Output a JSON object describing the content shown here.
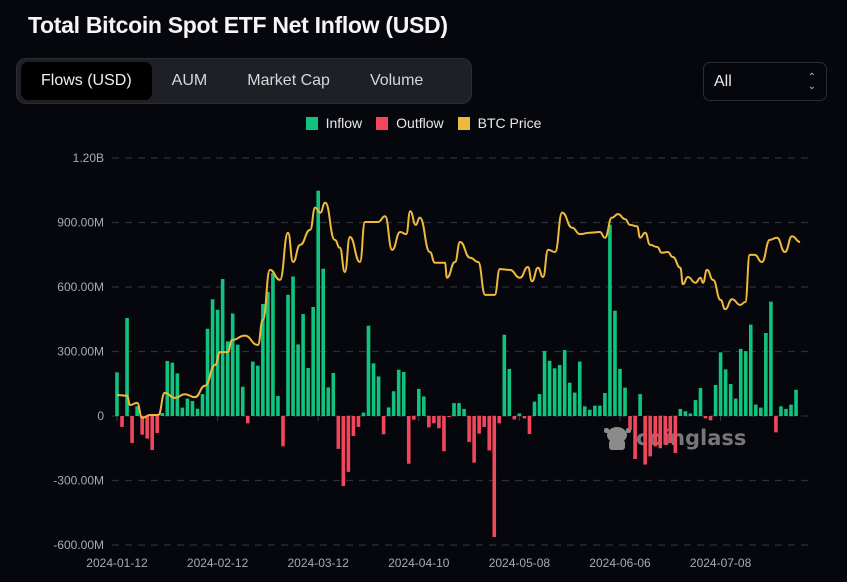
{
  "title": "Total Bitcoin Spot ETF Net Inflow (USD)",
  "tabs": [
    {
      "label": "Flows (USD)",
      "active": true
    },
    {
      "label": "AUM",
      "active": false
    },
    {
      "label": "Market Cap",
      "active": false
    },
    {
      "label": "Volume",
      "active": false
    }
  ],
  "range_select": {
    "value": "All",
    "icon": "up-down-chevron-icon"
  },
  "watermark": "coinglass",
  "colors": {
    "inflow": "#10c47f",
    "outflow": "#f1465c",
    "btc_price": "#f0b93b",
    "background": "#05070c",
    "grid": "#2c2f36"
  },
  "chart_data": {
    "type": "bar",
    "title": "Total Bitcoin Spot ETF Net Inflow (USD)",
    "legend": [
      {
        "name": "Inflow",
        "color": "#10c47f"
      },
      {
        "name": "Outflow",
        "color": "#f1465c"
      },
      {
        "name": "BTC Price",
        "color": "#f0b93b"
      }
    ],
    "legend_position": "top-center",
    "grid": true,
    "y_unit": "USD (millions)",
    "ylim": [
      -600,
      1200
    ],
    "y_ticks": [
      {
        "value": 1200,
        "label": "1.20B"
      },
      {
        "value": 900,
        "label": "900.00M"
      },
      {
        "value": 600,
        "label": "600.00M"
      },
      {
        "value": 300,
        "label": "300.00M"
      },
      {
        "value": 0,
        "label": "0"
      },
      {
        "value": -300,
        "label": "-300.00M"
      },
      {
        "value": -600,
        "label": "-600.00M"
      }
    ],
    "x_ticks": [
      {
        "index": 0,
        "label": "2024-01-12"
      },
      {
        "index": 20,
        "label": "2024-02-12"
      },
      {
        "index": 40,
        "label": "2024-03-12"
      },
      {
        "index": 60,
        "label": "2024-04-10"
      },
      {
        "index": 80,
        "label": "2024-05-08"
      },
      {
        "index": 100,
        "label": "2024-06-06"
      },
      {
        "index": 120,
        "label": "2024-07-08"
      }
    ],
    "net_flow_millions": [
      203,
      -51,
      456,
      -126,
      45,
      -87,
      -105,
      -158,
      -79,
      14,
      256,
      248,
      198,
      39,
      81,
      70,
      34,
      102,
      406,
      543,
      494,
      637,
      347,
      477,
      332,
      136,
      -34,
      253,
      234,
      521,
      577,
      665,
      93,
      -141,
      564,
      649,
      333,
      474,
      223,
      507,
      1048,
      685,
      133,
      200,
      -153,
      -326,
      -260,
      -93,
      -51,
      16,
      420,
      245,
      184,
      -85,
      40,
      115,
      215,
      205,
      -222,
      -17,
      126,
      91,
      -53,
      -34,
      -57,
      -164,
      -3,
      60,
      60,
      33,
      -121,
      -217,
      -82,
      -51,
      -160,
      -563,
      -34,
      378,
      219,
      -16,
      12,
      -11,
      -84,
      67,
      102,
      302,
      257,
      222,
      237,
      307,
      155,
      109,
      253,
      45,
      29,
      48,
      48,
      107,
      890,
      490,
      219,
      132,
      -64,
      -200,
      102,
      -226,
      -188,
      -141,
      -150,
      -133,
      -126,
      -172,
      33,
      22,
      12,
      74,
      130,
      -11,
      -20,
      144,
      296,
      217,
      149,
      81,
      312,
      302,
      425,
      53,
      39,
      386,
      532,
      -76,
      45,
      33,
      53,
      122
    ],
    "btc_price_usd": [
      [
        0,
        46000
      ],
      [
        2,
        45900
      ],
      [
        2.6,
        44600
      ],
      [
        4,
        44900
      ],
      [
        5,
        42800
      ],
      [
        6.6,
        43200
      ],
      [
        8.2,
        43200
      ],
      [
        9.5,
        46300
      ],
      [
        11.5,
        45600
      ],
      [
        13.5,
        46100
      ],
      [
        15.5,
        45700
      ],
      [
        17.5,
        47300
      ],
      [
        19.5,
        50200
      ],
      [
        20.5,
        52000
      ],
      [
        22,
        52000
      ],
      [
        22.9,
        53700
      ],
      [
        25.4,
        54300
      ],
      [
        28,
        53000
      ],
      [
        29,
        56500
      ],
      [
        30.4,
        63500
      ],
      [
        32.4,
        62100
      ],
      [
        34,
        68700
      ],
      [
        35,
        64600
      ],
      [
        36.4,
        67000
      ],
      [
        38.4,
        69100
      ],
      [
        39.4,
        72200
      ],
      [
        40.4,
        71500
      ],
      [
        41.4,
        72900
      ],
      [
        43.3,
        67700
      ],
      [
        44.3,
        66600
      ],
      [
        45.3,
        63200
      ],
      [
        46.3,
        68100
      ],
      [
        48.3,
        64600
      ],
      [
        49.3,
        70200
      ],
      [
        51.9,
        70200
      ],
      [
        53.3,
        71000
      ],
      [
        54.7,
        66300
      ],
      [
        56.3,
        68800
      ],
      [
        57.5,
        68500
      ],
      [
        58.3,
        71700
      ],
      [
        59.4,
        69800
      ],
      [
        60.2,
        70800
      ],
      [
        62.2,
        66000
      ],
      [
        63.2,
        64500
      ],
      [
        65.2,
        64500
      ],
      [
        65.6,
        62400
      ],
      [
        67.2,
        64600
      ],
      [
        68.2,
        67400
      ],
      [
        70.2,
        65200
      ],
      [
        71.8,
        64600
      ],
      [
        73.2,
        60000
      ],
      [
        75.1,
        60000
      ],
      [
        76.1,
        63600
      ],
      [
        78.1,
        63500
      ],
      [
        80.1,
        62400
      ],
      [
        81.7,
        63900
      ],
      [
        82.5,
        61900
      ],
      [
        83.7,
        63800
      ],
      [
        84.7,
        62500
      ],
      [
        85.7,
        66300
      ],
      [
        87.1,
        66000
      ],
      [
        88.5,
        71500
      ],
      [
        90.5,
        69400
      ],
      [
        92,
        68500
      ],
      [
        94,
        68700
      ],
      [
        96,
        68800
      ],
      [
        97,
        68000
      ],
      [
        98.4,
        70800
      ],
      [
        99.6,
        71300
      ],
      [
        101,
        70600
      ],
      [
        102,
        69800
      ],
      [
        103.4,
        69600
      ],
      [
        104,
        68000
      ],
      [
        105,
        68700
      ],
      [
        106,
        67000
      ],
      [
        107.4,
        66700
      ],
      [
        108.3,
        65900
      ],
      [
        109.5,
        66000
      ],
      [
        110.5,
        65300
      ],
      [
        112,
        63800
      ],
      [
        112.5,
        61500
      ],
      [
        113.5,
        62500
      ],
      [
        115,
        61700
      ],
      [
        116,
        62400
      ],
      [
        116.5,
        61700
      ],
      [
        117.3,
        63500
      ],
      [
        118.5,
        62100
      ],
      [
        120,
        59300
      ],
      [
        120.9,
        58000
      ],
      [
        122.3,
        59400
      ],
      [
        123.9,
        58600
      ],
      [
        124.9,
        59000
      ],
      [
        125.8,
        65600
      ],
      [
        126.8,
        65600
      ],
      [
        128.2,
        64600
      ],
      [
        129.8,
        67700
      ],
      [
        131.2,
        68000
      ],
      [
        132.8,
        66000
      ],
      [
        134.2,
        68200
      ],
      [
        135.8,
        67400
      ]
    ]
  }
}
